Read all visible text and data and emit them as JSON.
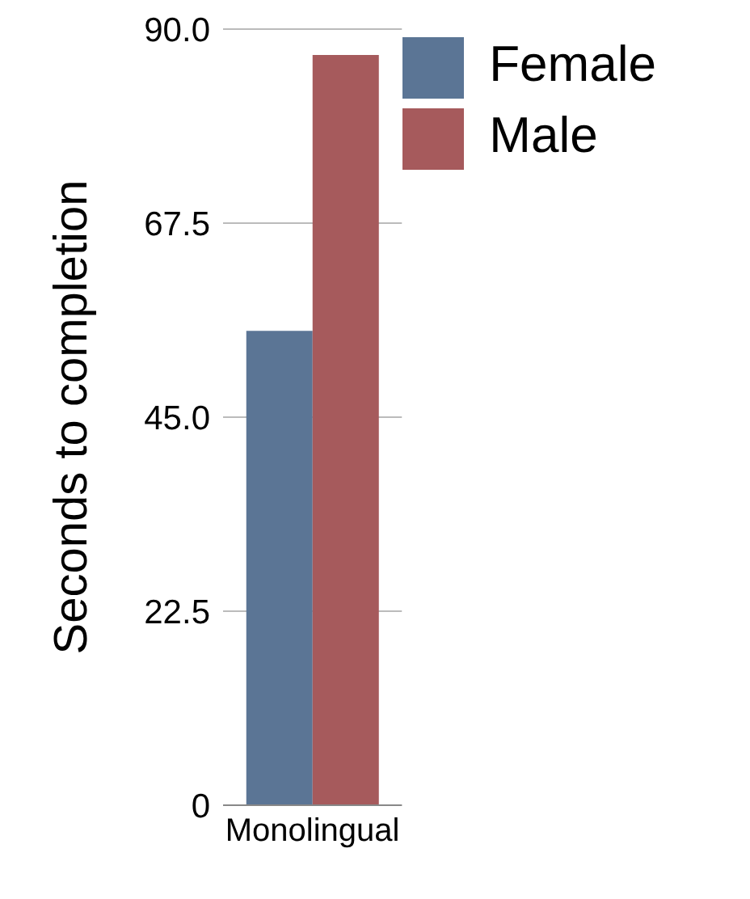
{
  "chart_data": {
    "type": "bar",
    "ylabel": "Seconds to completion",
    "categories": [
      "Monolingual"
    ],
    "series": [
      {
        "name": "Female",
        "color": "#5b7595",
        "values": [
          55
        ]
      },
      {
        "name": "Male",
        "color": "#a65a5c",
        "values": [
          87
        ]
      }
    ],
    "ylim": [
      0,
      90
    ],
    "yticks": [
      0,
      {
        "value": 22.5,
        "label": "22.5"
      },
      {
        "value": 45,
        "label": "45.0"
      },
      {
        "value": 67.5,
        "label": "67.5"
      },
      {
        "value": 90,
        "label": "90.0"
      }
    ],
    "grid": "y",
    "legend": "top right"
  }
}
